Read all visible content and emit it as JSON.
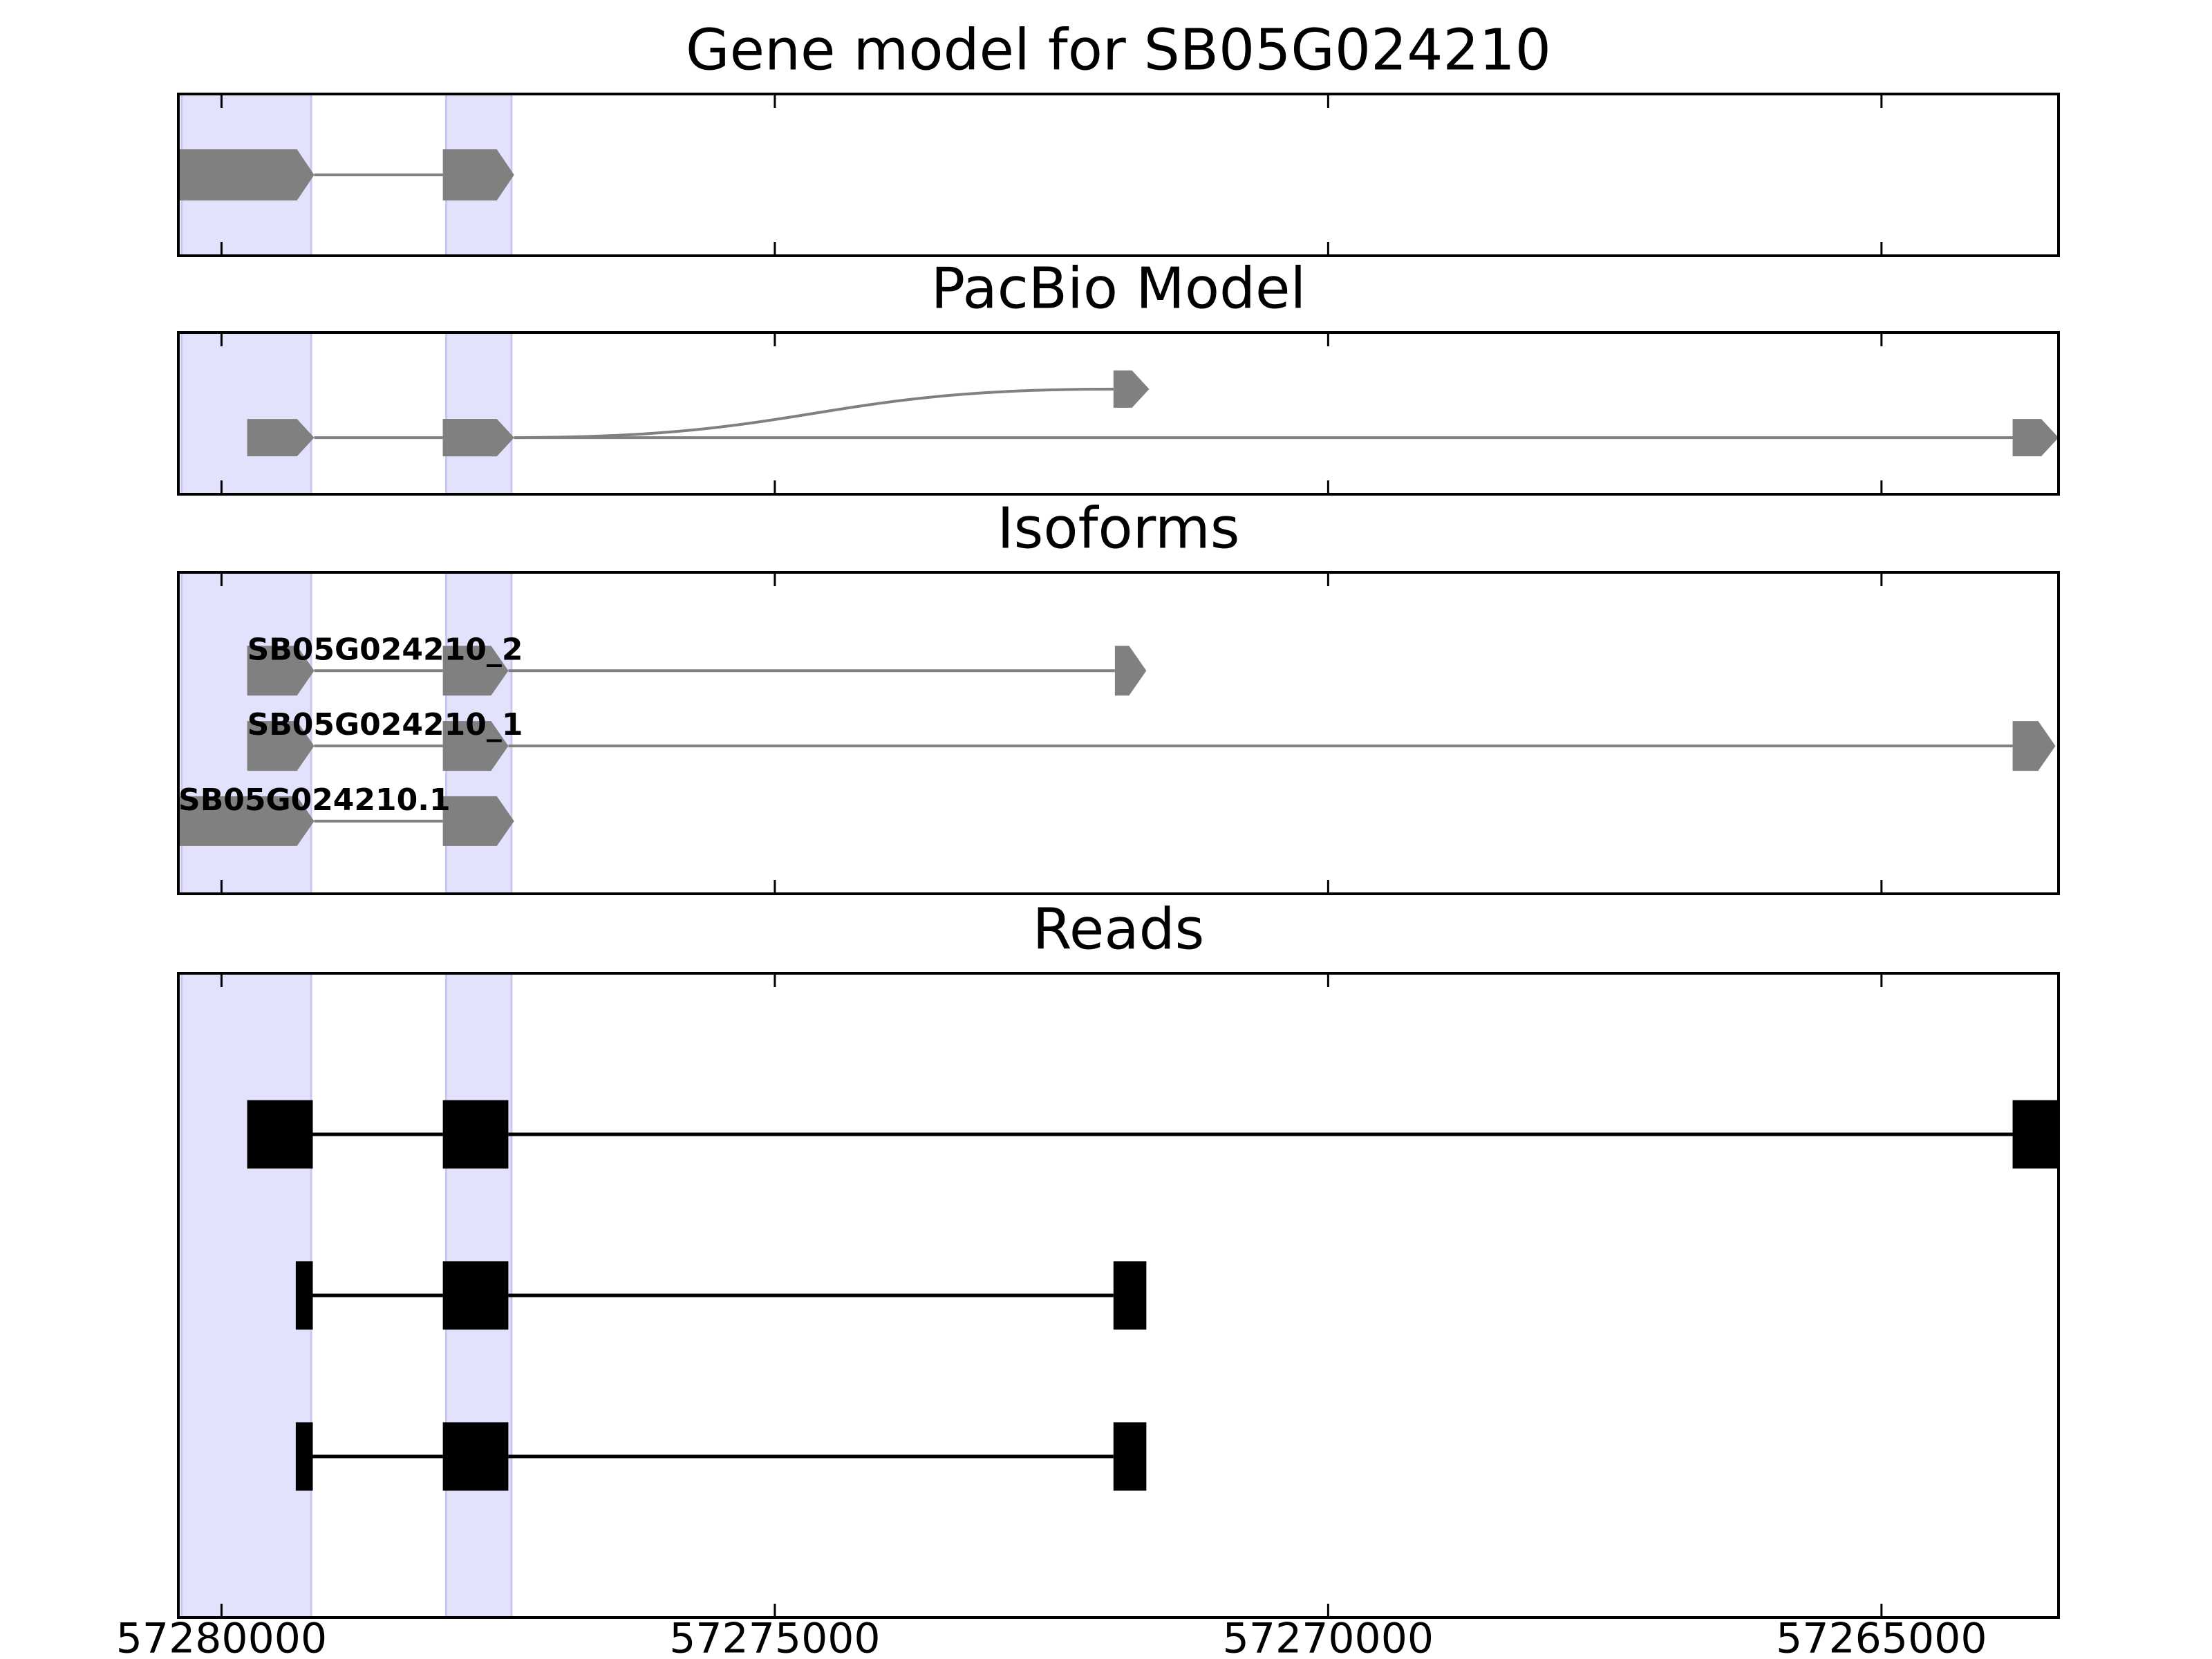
{
  "chart_data": [
    {
      "type": "gene-model",
      "title": "Gene model for SB05G024210",
      "xlim": [
        57280390,
        57263400
      ],
      "xticks": [
        57280000,
        57275000,
        57270000,
        57265000
      ],
      "highlights": [
        [
          57280360,
          57279190
        ],
        [
          57277970,
          57277380
        ]
      ],
      "highlight_color": "#e2e2fc",
      "color": "#808080",
      "features": [
        {
          "exons": [
            [
              57280390,
              57279162
            ],
            [
              57278000,
              57277356
            ]
          ]
        }
      ]
    },
    {
      "type": "splice-graph",
      "title": "PacBio Model",
      "xlim": [
        57280390,
        57263400
      ],
      "xticks": [
        57280000,
        57275000,
        57270000,
        57265000
      ],
      "highlights": [
        [
          57280360,
          57279190
        ],
        [
          57277970,
          57277380
        ]
      ],
      "highlight_color": "#e2e2fc",
      "color": "#808080",
      "features": [
        {
          "exons": [
            [
              57279768,
              57279162
            ],
            [
              57278000,
              57277356
            ],
            [
              57263815,
              57263400
            ]
          ]
        },
        {
          "exons": [
            [
              57278000,
              57277356
            ],
            [
              57271940,
              57271617
            ]
          ]
        }
      ]
    },
    {
      "type": "isoforms",
      "title": "Isoforms",
      "xlim": [
        57280390,
        57263400
      ],
      "xticks": [
        57280000,
        57275000,
        57270000,
        57265000
      ],
      "highlights": [
        [
          57280360,
          57279190
        ],
        [
          57277970,
          57277380
        ]
      ],
      "highlight_color": "#e2e2fc",
      "color": "#808080",
      "features": [
        {
          "name": "SB05G024210_2",
          "exons": [
            [
              57279768,
              57279162
            ],
            [
              57278000,
              57277408
            ],
            [
              57271927,
              57271643
            ]
          ]
        },
        {
          "name": "SB05G024210_1",
          "exons": [
            [
              57279768,
              57279162
            ],
            [
              57278000,
              57277408
            ],
            [
              57263815,
              57263428
            ]
          ]
        },
        {
          "name": "SB05G024210.1",
          "exons": [
            [
              57280390,
              57279162
            ],
            [
              57278000,
              57277356
            ]
          ]
        }
      ]
    },
    {
      "type": "reads",
      "title": "Reads",
      "xlim": [
        57280390,
        57263400
      ],
      "xticks": [
        57280000,
        57275000,
        57270000,
        57265000
      ],
      "highlights": [
        [
          57280360,
          57279190
        ],
        [
          57277970,
          57277380
        ]
      ],
      "highlight_color": "#e2e2fc",
      "color": "#000000",
      "features": [
        {
          "exons": [
            [
              57279768,
              57279175
            ],
            [
              57278000,
              57277408
            ],
            [
              57263815,
              57263402
            ]
          ]
        },
        {
          "exons": [
            [
              57279329,
              57279175
            ],
            [
              57278000,
              57277408
            ],
            [
              57271940,
              57271643
            ]
          ]
        },
        {
          "exons": [
            [
              57279329,
              57279175
            ],
            [
              57278000,
              57277408
            ],
            [
              57271940,
              57271643
            ]
          ]
        }
      ]
    }
  ]
}
